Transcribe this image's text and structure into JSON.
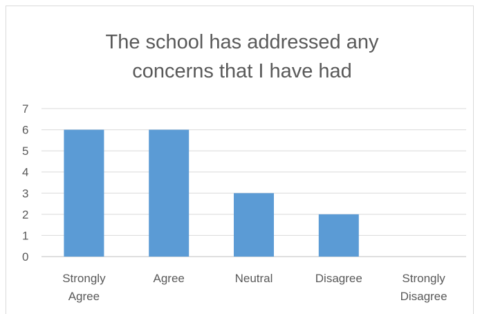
{
  "chart_data": {
    "type": "bar",
    "title_lines": [
      "The school has addressed any",
      "concerns that I have had"
    ],
    "categories": [
      [
        "Strongly",
        "Agree"
      ],
      [
        "Agree"
      ],
      [
        "Neutral"
      ],
      [
        "Disagree"
      ],
      [
        "Strongly",
        "Disagree"
      ]
    ],
    "values": [
      6,
      6,
      3,
      2,
      0
    ],
    "ylim": [
      0,
      7
    ],
    "yticks": [
      "0",
      "1",
      "2",
      "3",
      "4",
      "5",
      "6",
      "7"
    ],
    "grid": true,
    "legend": "none",
    "bar_color": "#5b9bd5",
    "grid_color": "#d9d9d9",
    "text_color": "#595959"
  }
}
